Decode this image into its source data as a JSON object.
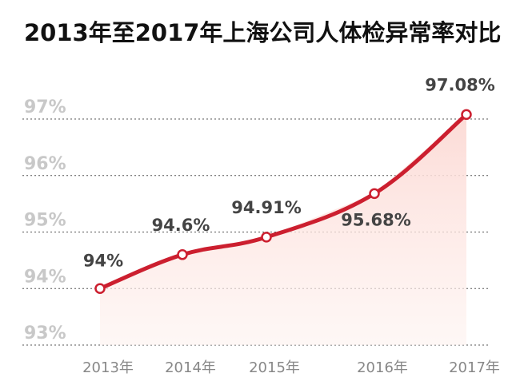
{
  "title": "2013年至2017年上海公司人体检异常率对比",
  "colors": {
    "line": "#cc1f2f",
    "area": "#fde7e4",
    "marker_fill": "#ffffff",
    "grid": "#555555"
  },
  "chart_data": {
    "type": "line",
    "title": "2013年至2017年上海公司人体检异常率对比",
    "xlabel": "",
    "ylabel": "",
    "categories": [
      "2013年",
      "2014年",
      "2015年",
      "2016年",
      "2017年"
    ],
    "values": [
      94,
      94.6,
      94.91,
      95.68,
      97.08
    ],
    "data_labels": [
      "94%",
      "94.6%",
      "94.91%",
      "95.68%",
      "97.08%"
    ],
    "ylim": [
      93,
      97
    ],
    "yticks": [
      97,
      96,
      95,
      94,
      93
    ],
    "ytick_labels": [
      "97%",
      "96%",
      "95%",
      "94%",
      "93%"
    ],
    "grid": "horizontal-dashed",
    "area_fill": true,
    "legend": "none"
  }
}
